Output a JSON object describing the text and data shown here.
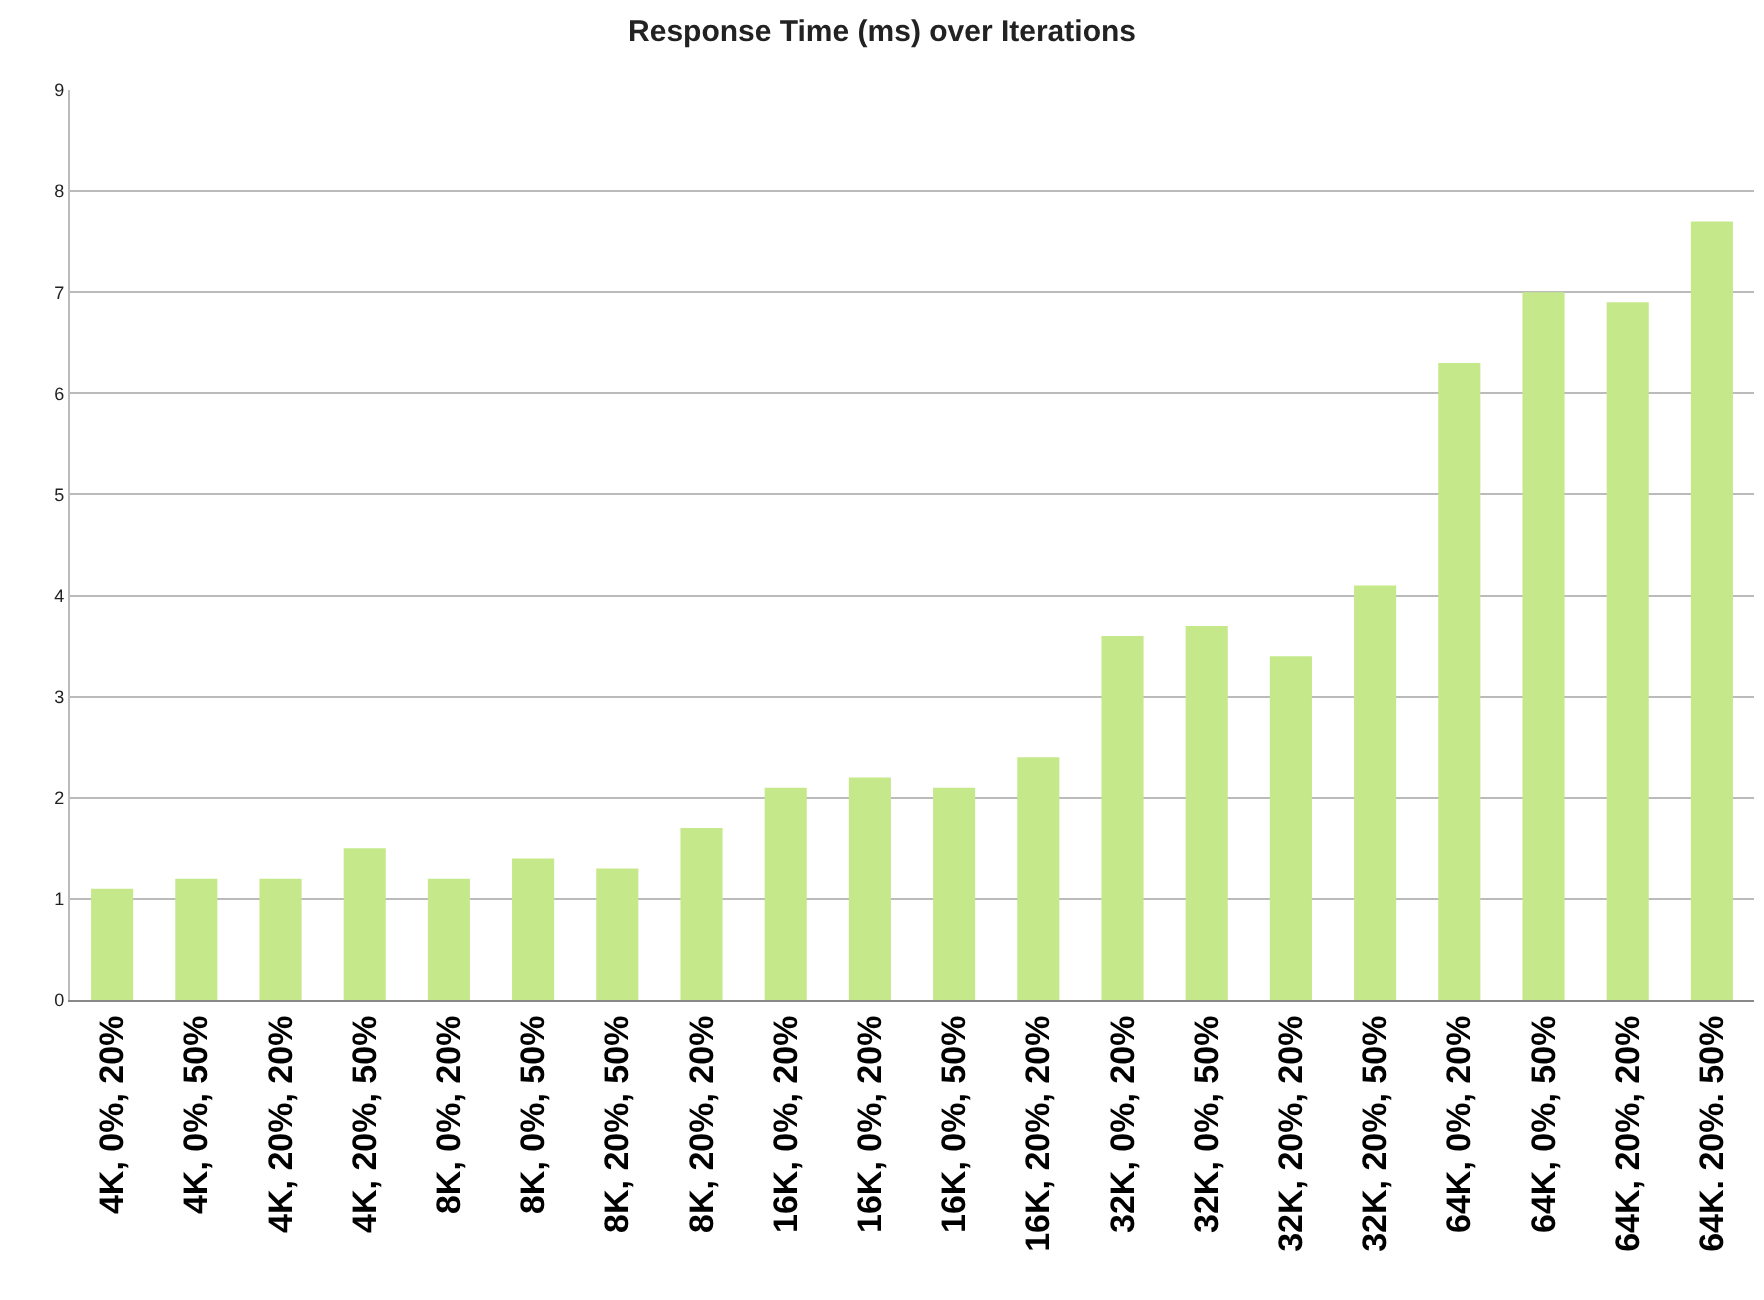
{
  "chart_data": {
    "type": "bar",
    "title": "Response Time (ms) over Iterations",
    "categories": [
      "4K, 0%, 20%",
      "4K, 0%, 50%",
      "4K, 20%, 20%",
      "4K, 20%, 50%",
      "8K, 0%, 20%",
      "8K, 0%, 50%",
      "8K, 20%, 50%",
      "8K, 20%, 20%",
      "16K, 0%, 20%",
      "16K, 0%, 20%",
      "16K, 0%, 50%",
      "16K, 20%, 20%",
      "32K, 0%, 20%",
      "32K, 0%, 50%",
      "32K, 20%, 20%",
      "32K, 20%, 50%",
      "64K, 0%, 20%",
      "64K, 0%, 50%",
      "64K, 20%, 20%",
      "64K. 20%. 50%"
    ],
    "values": [
      1.1,
      1.2,
      1.2,
      1.5,
      1.2,
      1.4,
      1.3,
      1.7,
      2.1,
      2.2,
      2.1,
      2.4,
      3.6,
      3.7,
      3.4,
      4.1,
      6.3,
      7.0,
      6.9,
      7.7
    ],
    "color": "#c5e88a",
    "ylim": [
      0,
      9
    ],
    "yticks": [
      0,
      1,
      2,
      3,
      4,
      5,
      6,
      7,
      8,
      9
    ],
    "grid": "y"
  }
}
